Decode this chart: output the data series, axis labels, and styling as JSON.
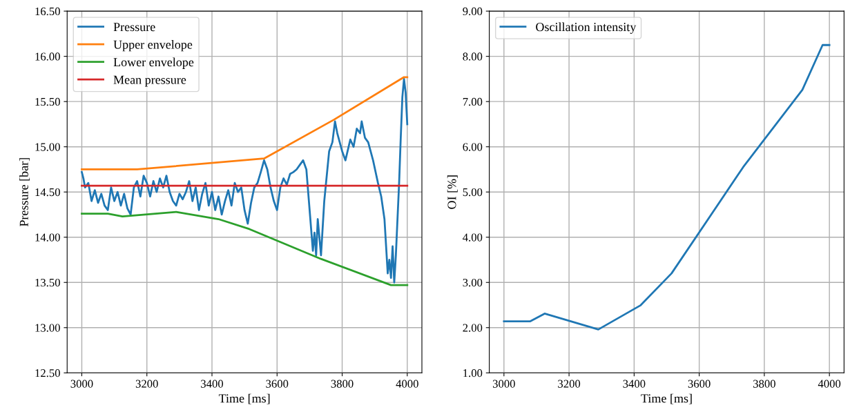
{
  "chart_data": [
    {
      "type": "line",
      "xlabel": "Time [ms]",
      "ylabel": "Pressure [bar]",
      "xlim": [
        2955,
        4045
      ],
      "ylim": [
        12.5,
        16.5
      ],
      "xticks": [
        3000,
        3200,
        3400,
        3600,
        3800,
        4000
      ],
      "yticks": [
        {
          "value": 12.5,
          "label": "12.50"
        },
        {
          "value": 13.0,
          "label": "13.00"
        },
        {
          "value": 13.5,
          "label": "13.50"
        },
        {
          "value": 14.0,
          "label": "14.00"
        },
        {
          "value": 14.5,
          "label": "14.50"
        },
        {
          "value": 15.0,
          "label": "15.00"
        },
        {
          "value": 15.5,
          "label": "15.50"
        },
        {
          "value": 16.0,
          "label": "16.00"
        },
        {
          "value": 16.5,
          "label": "16.50"
        }
      ],
      "grid": true,
      "legend": "top left",
      "series": [
        {
          "name": "Pressure",
          "color": "#1f77b4",
          "x": [
            3000,
            3005,
            3010,
            3020,
            3030,
            3040,
            3050,
            3060,
            3070,
            3080,
            3090,
            3100,
            3110,
            3120,
            3130,
            3140,
            3150,
            3160,
            3170,
            3180,
            3190,
            3200,
            3210,
            3220,
            3230,
            3240,
            3250,
            3260,
            3270,
            3280,
            3290,
            3300,
            3310,
            3320,
            3330,
            3340,
            3350,
            3360,
            3370,
            3380,
            3390,
            3400,
            3410,
            3420,
            3430,
            3440,
            3450,
            3460,
            3470,
            3480,
            3490,
            3500,
            3510,
            3520,
            3530,
            3540,
            3550,
            3560,
            3570,
            3580,
            3590,
            3600,
            3610,
            3620,
            3630,
            3640,
            3650,
            3660,
            3670,
            3680,
            3690,
            3700,
            3710,
            3715,
            3720,
            3725,
            3735,
            3745,
            3760,
            3770,
            3778,
            3785,
            3800,
            3810,
            3825,
            3835,
            3845,
            3855,
            3860,
            3870,
            3880,
            3895,
            3910,
            3920,
            3930,
            3935,
            3940,
            3945,
            3950,
            3955,
            3960,
            3965,
            3970,
            3975,
            3980,
            3985,
            3990,
            3995,
            4000
          ],
          "values": [
            14.72,
            14.65,
            14.55,
            14.6,
            14.4,
            14.52,
            14.38,
            14.48,
            14.35,
            14.3,
            14.55,
            14.4,
            14.5,
            14.35,
            14.48,
            14.32,
            14.25,
            14.55,
            14.62,
            14.45,
            14.68,
            14.6,
            14.45,
            14.62,
            14.5,
            14.65,
            14.55,
            14.68,
            14.5,
            14.4,
            14.35,
            14.48,
            14.42,
            14.5,
            14.62,
            14.4,
            14.55,
            14.3,
            14.48,
            14.6,
            14.35,
            14.5,
            14.3,
            14.45,
            14.25,
            14.4,
            14.52,
            14.35,
            14.6,
            14.5,
            14.55,
            14.3,
            14.15,
            14.38,
            14.55,
            14.6,
            14.72,
            14.85,
            14.75,
            14.55,
            14.4,
            14.3,
            14.55,
            14.65,
            14.58,
            14.7,
            14.72,
            14.75,
            14.8,
            14.85,
            14.75,
            14.3,
            13.85,
            14.05,
            13.8,
            14.2,
            13.8,
            14.4,
            14.95,
            15.05,
            15.28,
            15.15,
            14.95,
            14.85,
            15.08,
            15.0,
            15.2,
            15.15,
            15.28,
            15.1,
            15.05,
            14.85,
            14.6,
            14.45,
            14.2,
            13.9,
            13.6,
            13.75,
            13.55,
            13.9,
            13.5,
            13.8,
            14.2,
            14.6,
            15.1,
            15.55,
            15.75,
            15.6,
            15.25
          ]
        },
        {
          "name": "Upper envelope",
          "color": "#ff7f0e",
          "x": [
            3000,
            3170,
            3560,
            3775,
            3990,
            4000
          ],
          "values": [
            14.75,
            14.75,
            14.87,
            15.3,
            15.77,
            15.77
          ]
        },
        {
          "name": "Lower envelope",
          "color": "#2ca02c",
          "x": [
            3000,
            3080,
            3125,
            3290,
            3420,
            3515,
            3735,
            3950,
            4000
          ],
          "values": [
            14.26,
            14.26,
            14.23,
            14.28,
            14.2,
            14.09,
            13.76,
            13.47,
            13.47
          ]
        },
        {
          "name": "Mean pressure",
          "color": "#d62728",
          "x": [
            3000,
            4000
          ],
          "values": [
            14.57,
            14.57
          ]
        }
      ]
    },
    {
      "type": "line",
      "xlabel": "Time [ms]",
      "ylabel": "OI [%]",
      "xlim": [
        2955,
        4045
      ],
      "ylim": [
        1.0,
        9.0
      ],
      "xticks": [
        3000,
        3200,
        3400,
        3600,
        3800,
        4000
      ],
      "yticks": [
        {
          "value": 1.0,
          "label": "1.00"
        },
        {
          "value": 2.0,
          "label": "2.00"
        },
        {
          "value": 3.0,
          "label": "3.00"
        },
        {
          "value": 4.0,
          "label": "4.00"
        },
        {
          "value": 5.0,
          "label": "5.00"
        },
        {
          "value": 6.0,
          "label": "6.00"
        },
        {
          "value": 7.0,
          "label": "7.00"
        },
        {
          "value": 8.0,
          "label": "8.00"
        },
        {
          "value": 9.0,
          "label": "9.00"
        }
      ],
      "grid": true,
      "legend": "top left",
      "series": [
        {
          "name": "Oscillation intensity",
          "color": "#1f77b4",
          "x": [
            3000,
            3081,
            3125,
            3290,
            3419,
            3515,
            3735,
            3917,
            3979,
            4000
          ],
          "values": [
            2.14,
            2.14,
            2.31,
            1.96,
            2.49,
            3.2,
            5.55,
            7.26,
            8.25,
            8.25
          ]
        }
      ]
    }
  ]
}
